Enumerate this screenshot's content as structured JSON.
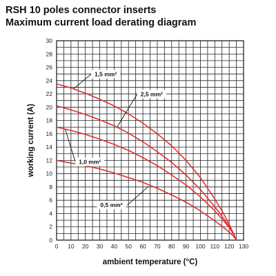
{
  "chart_data": {
    "type": "line",
    "title": "RSH 10 poles connector inserts",
    "subtitle": "Maximum current load derating diagram",
    "xlabel": "ambient temperature (°C)",
    "ylabel": "working current (A)",
    "xlim": [
      0,
      130
    ],
    "ylim": [
      0,
      30
    ],
    "x_ticks": [
      0,
      10,
      20,
      30,
      40,
      50,
      60,
      70,
      80,
      90,
      100,
      110,
      120,
      130
    ],
    "y_ticks": [
      0,
      2,
      4,
      6,
      8,
      10,
      12,
      14,
      16,
      18,
      20,
      22,
      24,
      26,
      28,
      30
    ],
    "x_tick_labels": [
      "0",
      "10",
      "20",
      "30",
      "40",
      "50",
      "60",
      "70",
      "80",
      "90",
      "100",
      "110",
      "120",
      "130"
    ],
    "y_tick_labels": [
      "0",
      "2",
      "4",
      "6",
      "8",
      "10",
      "12",
      "14",
      "16",
      "18",
      "20",
      "22",
      "24",
      "26",
      "28",
      "30"
    ],
    "grid": true,
    "minor_grid_x_step": 5,
    "minor_grid_y_step": 1,
    "line_color": "#e03030",
    "series": [
      {
        "name": "1,5 mm²",
        "x": [
          0,
          10,
          20,
          30,
          40,
          50,
          60,
          70,
          80,
          90,
          100,
          110,
          115,
          120,
          123,
          125
        ],
        "y": [
          23.5,
          22.9,
          22.1,
          21.2,
          20.2,
          19.0,
          17.6,
          16.0,
          14.2,
          12.0,
          9.4,
          6.2,
          4.4,
          2.4,
          1.0,
          0
        ]
      },
      {
        "name": "2,5 mm²",
        "x": [
          0,
          10,
          20,
          30,
          40,
          50,
          60,
          70,
          80,
          90,
          100,
          110,
          115,
          120,
          123,
          125
        ],
        "y": [
          20.2,
          19.6,
          18.9,
          18.1,
          17.2,
          16.1,
          14.8,
          13.3,
          11.7,
          9.8,
          7.6,
          5.0,
          3.6,
          2.1,
          1.0,
          0
        ]
      },
      {
        "name": "1,0 mm²",
        "x": [
          0,
          10,
          20,
          30,
          40,
          50,
          60,
          70,
          80,
          90,
          100,
          110,
          115,
          120,
          123,
          125
        ],
        "y": [
          17.0,
          16.5,
          15.9,
          15.2,
          14.4,
          13.5,
          12.4,
          11.2,
          9.8,
          8.3,
          6.5,
          4.4,
          3.2,
          1.9,
          0.9,
          0
        ]
      },
      {
        "name": "0,5 mm²",
        "x": [
          0,
          10,
          20,
          30,
          40,
          50,
          60,
          70,
          80,
          90,
          100,
          110,
          115,
          120,
          123,
          125
        ],
        "y": [
          12.0,
          11.6,
          11.2,
          10.7,
          10.1,
          9.4,
          8.7,
          7.8,
          6.8,
          5.7,
          4.4,
          2.9,
          2.1,
          1.2,
          0.6,
          0
        ]
      }
    ],
    "labels": [
      {
        "series": "1,5 mm²",
        "label": "1,5 mm²",
        "label_at": [
          25,
          25.6
        ],
        "anchor_point": [
          12,
          22.8
        ]
      },
      {
        "series": "2,5 mm²",
        "label": "2,5 mm²",
        "label_at": [
          57,
          22.6
        ],
        "anchor_point": [
          42,
          17.0
        ]
      },
      {
        "series": "1,0 mm²",
        "label": "1,0 mm²",
        "label_at": [
          14,
          12.4
        ],
        "anchor_point": [
          6,
          16.7
        ]
      },
      {
        "series": "0,5 mm²",
        "label": "0,5 mm²",
        "label_at": [
          29,
          5.9
        ],
        "anchor_point": [
          64,
          8.1
        ]
      }
    ]
  }
}
